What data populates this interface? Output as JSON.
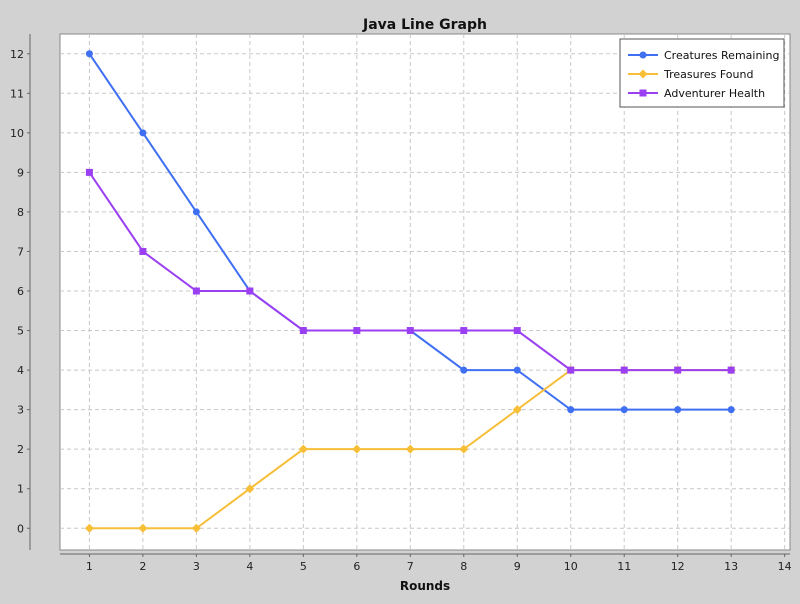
{
  "chart_data": {
    "type": "line",
    "title": "Java Line Graph",
    "xlabel": "Rounds",
    "ylabel": "",
    "xlim": [
      0.45,
      14.1
    ],
    "ylim": [
      -0.55,
      12.5
    ],
    "x_ticks": [
      1,
      2,
      3,
      4,
      5,
      6,
      7,
      8,
      9,
      10,
      11,
      12,
      13,
      14
    ],
    "y_ticks": [
      0,
      1,
      2,
      3,
      4,
      5,
      6,
      7,
      8,
      9,
      10,
      11,
      12
    ],
    "grid": true,
    "legend_position": "top-right",
    "x": [
      1,
      2,
      3,
      4,
      5,
      6,
      7,
      8,
      9,
      10,
      11,
      12,
      13
    ],
    "series": [
      {
        "name": "Creatures Remaining",
        "color": "#3f6ff2",
        "marker": "circle",
        "values": [
          12,
          10,
          8,
          6,
          5,
          5,
          5,
          4,
          4,
          3,
          3,
          3,
          3
        ]
      },
      {
        "name": "Treasures Found",
        "color": "#f7be38",
        "marker": "diamond",
        "values": [
          0,
          0,
          0,
          1,
          2,
          2,
          2,
          2,
          3,
          4,
          4,
          4,
          4
        ]
      },
      {
        "name": "Adventurer Health",
        "color": "#9b3ff2",
        "marker": "square",
        "values": [
          9,
          7,
          6,
          6,
          5,
          5,
          5,
          5,
          5,
          4,
          4,
          4,
          4
        ]
      }
    ]
  }
}
